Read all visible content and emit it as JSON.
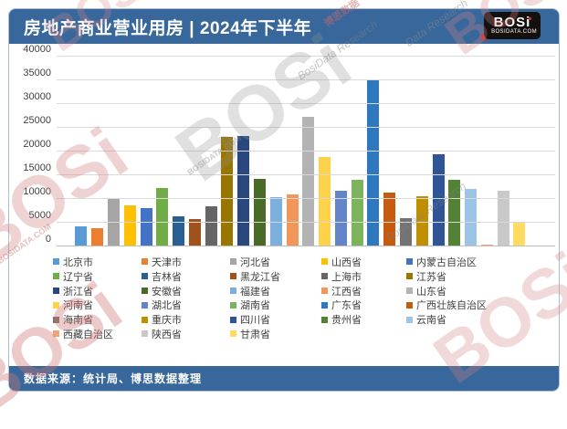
{
  "header": {
    "title": "房地产商业营业用房 | 2024年下半年",
    "logo_text": "BOSi",
    "logo_domain": "BOSIDATA.COM"
  },
  "footer": {
    "source_text": "数据来源：统计局、博思数据整理"
  },
  "watermarks": [
    "BOSi",
    "BOSIDATA.COM",
    "BosiData Research",
    "Data Research",
    "博思数据"
  ],
  "chart_data": {
    "type": "bar",
    "title": "房地产商业营业用房 | 2024年下半年",
    "xlabel": "",
    "ylabel": "",
    "ylim": [
      0,
      40000
    ],
    "ytick_step": 5000,
    "yticks": [
      "40000",
      "35000",
      "30000",
      "25000",
      "20000",
      "15000",
      "10000",
      "5000",
      "0"
    ],
    "grid": true,
    "legend_position": "bottom",
    "categories": [
      "北京市",
      "天津市",
      "河北省",
      "山西省",
      "内蒙古自治区",
      "辽宁省",
      "吉林省",
      "黑龙江省",
      "上海市",
      "江苏省",
      "浙江省",
      "安徽省",
      "福建省",
      "江西省",
      "山东省",
      "河南省",
      "湖北省",
      "湖南省",
      "广东省",
      "广西壮族自治区",
      "海南省",
      "重庆市",
      "四川省",
      "贵州省",
      "云南省",
      "西藏自治区",
      "陕西省",
      "甘肃省"
    ],
    "values": [
      4200,
      3900,
      10000,
      8700,
      8000,
      12400,
      6400,
      5800,
      8400,
      23000,
      23300,
      14300,
      10400,
      11000,
      27300,
      18900,
      11800,
      14000,
      35000,
      11400,
      6000,
      10500,
      19400,
      14000,
      12200,
      400,
      11800,
      5100
    ],
    "colors": [
      "#5B9BD5",
      "#ED7D31",
      "#A5A5A5",
      "#FFC000",
      "#4472C4",
      "#70AD47",
      "#2A5F91",
      "#A0521D",
      "#666666",
      "#9A7500",
      "#29497E",
      "#4A6A28",
      "#7CAFDD",
      "#F1975A",
      "#B3B3B3",
      "#FFD24A",
      "#6384C8",
      "#7CB45C",
      "#2E78BE",
      "#C55A11",
      "#737373",
      "#BF8F00",
      "#2F5597",
      "#538135",
      "#9DC3E6",
      "#F2A379",
      "#C9C9C9",
      "#FFDC5F"
    ]
  }
}
